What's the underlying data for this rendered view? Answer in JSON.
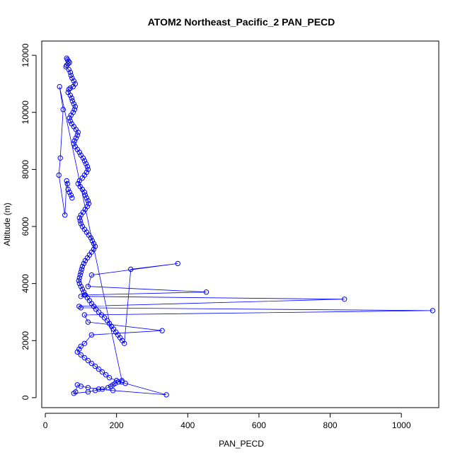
{
  "chart_data": {
    "type": "scatter",
    "title": "ATOM2 Northeast_Pacific_2 PAN_PECD",
    "xlabel": "PAN_PECD",
    "ylabel": "Altitude (m)",
    "xlim": [
      -10,
      1105
    ],
    "ylim": [
      -350,
      12500
    ],
    "x_ticks": [
      0,
      200,
      400,
      600,
      800,
      1000
    ],
    "y_ticks": [
      0,
      2000,
      4000,
      6000,
      8000,
      10000,
      12000
    ],
    "x_tick_labels": [
      "0",
      "200",
      "400",
      "600",
      "800",
      "1000"
    ],
    "y_tick_labels": [
      "0",
      "2000",
      "4000",
      "6000",
      "8000",
      "10000",
      "12000"
    ],
    "grid": false,
    "series_color": "#0000ff",
    "markers": "open-circle",
    "connected": true,
    "series": [
      {
        "x": [
          60,
          62,
          65,
          68,
          64,
          60,
          58,
          66,
          70,
          72,
          75,
          80,
          84,
          78,
          70,
          66,
          64,
          70,
          74,
          76,
          80,
          84,
          82,
          78,
          72,
          68,
          70,
          74,
          80,
          86,
          92,
          90,
          86,
          82,
          80,
          84,
          90,
          96,
          100,
          106,
          110,
          114,
          118,
          120,
          116,
          110,
          104,
          96,
          92,
          98,
          104,
          110,
          112,
          116,
          120,
          122,
          118,
          112,
          106,
          100,
          96,
          98,
          100,
          104,
          110,
          116,
          122,
          128,
          132,
          136,
          140,
          136,
          130,
          124,
          118,
          112,
          108,
          104,
          102,
          100,
          98,
          96,
          94,
          96,
          100,
          104,
          108,
          112,
          118,
          124,
          130,
          136,
          142,
          150,
          158,
          166,
          174,
          180,
          186,
          192,
          198,
          204,
          210,
          216,
          222,
          240,
          372,
          130,
          120,
          452,
          110,
          100,
          840,
          95,
          100,
          1088,
          110,
          120,
          328,
          130,
          110,
          100,
          95,
          90,
          100,
          110,
          120,
          130,
          140,
          150,
          160,
          170,
          180,
          200,
          215,
          225,
          340,
          190,
          150,
          120,
          100,
          90,
          85,
          80,
          120,
          140,
          160,
          176,
          184,
          190,
          196,
          205,
          215,
          40,
          50,
          42,
          38,
          55,
          60,
          62,
          64,
          68,
          72,
          75
        ],
        "y": [
          11900,
          11850,
          11800,
          11750,
          11700,
          11650,
          11600,
          11500,
          11400,
          11300,
          11200,
          11100,
          11000,
          10900,
          10850,
          10800,
          10700,
          10600,
          10500,
          10400,
          10300,
          10200,
          10100,
          10000,
          9900,
          9800,
          9700,
          9600,
          9500,
          9400,
          9300,
          9200,
          9100,
          9000,
          8900,
          8800,
          8700,
          8600,
          8500,
          8400,
          8300,
          8200,
          8100,
          8000,
          7900,
          7800,
          7700,
          7600,
          7500,
          7400,
          7300,
          7200,
          7100,
          7000,
          6900,
          6800,
          6700,
          6600,
          6500,
          6400,
          6300,
          6200,
          6100,
          6000,
          5900,
          5800,
          5700,
          5600,
          5500,
          5400,
          5300,
          5200,
          5100,
          5000,
          4900,
          4800,
          4700,
          4600,
          4500,
          4400,
          4300,
          4200,
          4100,
          4000,
          3900,
          3800,
          3700,
          3600,
          3500,
          3400,
          3300,
          3200,
          3100,
          3000,
          2900,
          2800,
          2700,
          2600,
          2500,
          2400,
          2300,
          2200,
          2100,
          2000,
          1900,
          4500,
          4700,
          4300,
          3900,
          3700,
          3600,
          3550,
          3450,
          3200,
          3150,
          3050,
          2900,
          2650,
          2350,
          2200,
          1900,
          1800,
          1700,
          1600,
          1500,
          1400,
          1300,
          1200,
          1100,
          1000,
          900,
          800,
          700,
          600,
          550,
          500,
          100,
          250,
          300,
          350,
          400,
          450,
          200,
          150,
          200,
          250,
          300,
          350,
          400,
          450,
          500,
          550,
          600,
          10900,
          10100,
          8400,
          7800,
          6400,
          7600,
          7500,
          7300,
          7200,
          7100,
          7000
        ]
      }
    ]
  }
}
